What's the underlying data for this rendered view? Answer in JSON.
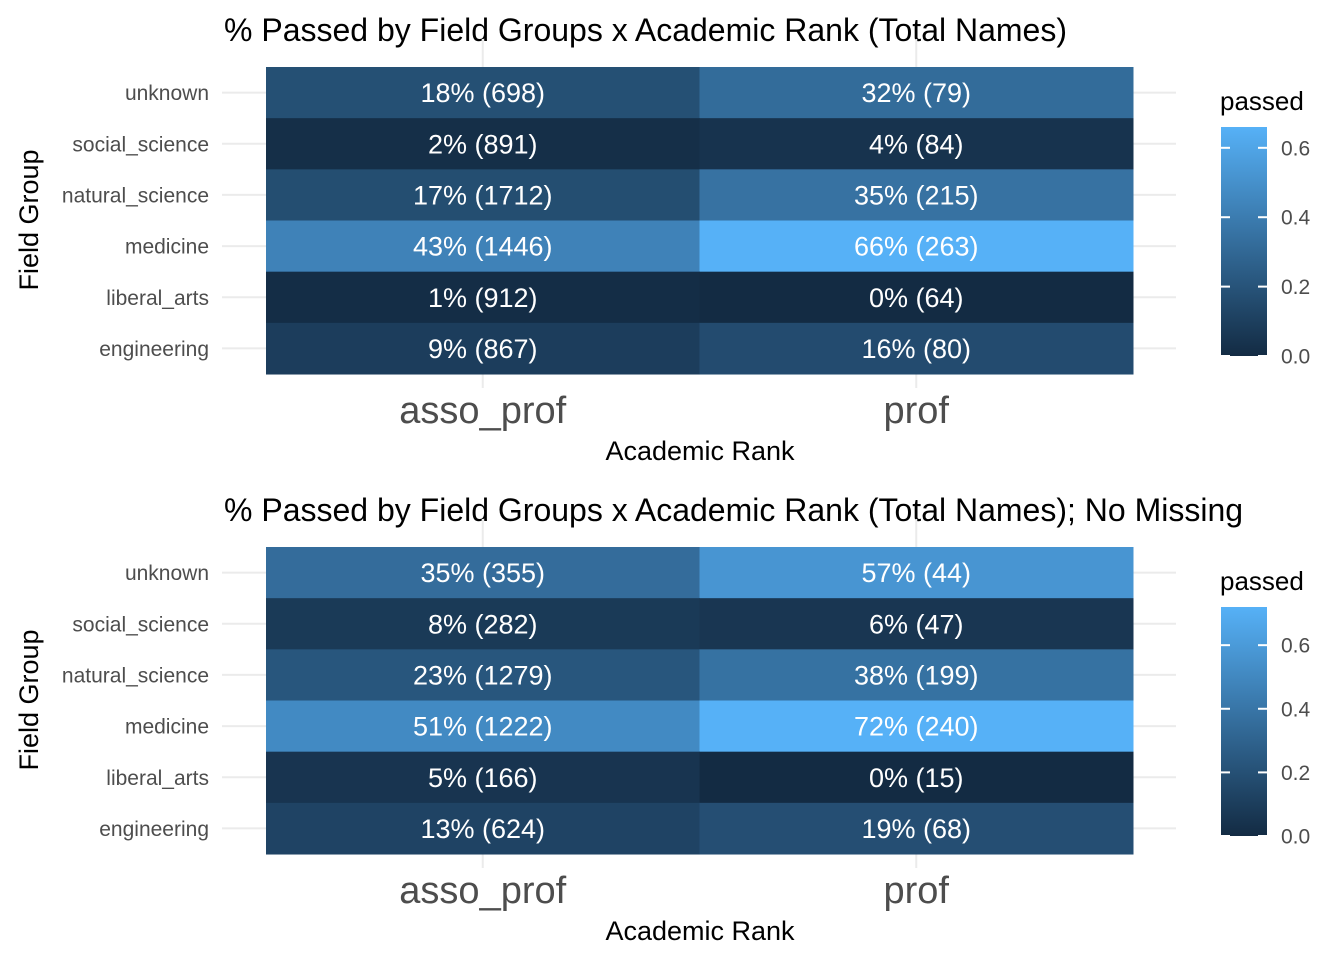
{
  "chart_data": [
    {
      "type": "heatmap",
      "title": "% Passed by Field Groups x Academic Rank (Total Names)",
      "xlabel": "Academic Rank",
      "ylabel": "Field Group",
      "x": [
        "asso_prof",
        "prof"
      ],
      "y": [
        "unknown",
        "social_science",
        "natural_science",
        "medicine",
        "liberal_arts",
        "engineering"
      ],
      "values": [
        [
          0.18,
          0.32
        ],
        [
          0.02,
          0.04
        ],
        [
          0.17,
          0.35
        ],
        [
          0.43,
          0.66
        ],
        [
          0.01,
          0.0
        ],
        [
          0.09,
          0.16
        ]
      ],
      "labels": [
        [
          "18% (698)",
          "32% (79)"
        ],
        [
          "2% (891)",
          "4% (84)"
        ],
        [
          "17% (1712)",
          "35% (215)"
        ],
        [
          "43% (1446)",
          "66% (263)"
        ],
        [
          "1% (912)",
          "0% (64)"
        ],
        [
          "9% (867)",
          "16% (80)"
        ]
      ],
      "legend": {
        "title": "passed",
        "range": [
          0,
          0.66
        ],
        "ticks": [
          0,
          0.2,
          0.4,
          0.6
        ],
        "tick_labels": [
          "0.0",
          "0.2",
          "0.4",
          "0.6"
        ],
        "low_color": "#132B43",
        "high_color": "#56B1F7",
        "position": "right"
      },
      "grid": true
    },
    {
      "type": "heatmap",
      "title": "% Passed by Field Groups x Academic Rank (Total Names); No Missing",
      "xlabel": "Academic Rank",
      "ylabel": "Field Group",
      "x": [
        "asso_prof",
        "prof"
      ],
      "y": [
        "unknown",
        "social_science",
        "natural_science",
        "medicine",
        "liberal_arts",
        "engineering"
      ],
      "values": [
        [
          0.35,
          0.57
        ],
        [
          0.08,
          0.06
        ],
        [
          0.23,
          0.38
        ],
        [
          0.51,
          0.72
        ],
        [
          0.05,
          0.0
        ],
        [
          0.13,
          0.19
        ]
      ],
      "labels": [
        [
          "35% (355)",
          "57% (44)"
        ],
        [
          "8% (282)",
          "6% (47)"
        ],
        [
          "23% (1279)",
          "38% (199)"
        ],
        [
          "51% (1222)",
          "72% (240)"
        ],
        [
          "5% (166)",
          "0% (15)"
        ],
        [
          "13% (624)",
          "19% (68)"
        ]
      ],
      "legend": {
        "title": "passed",
        "range": [
          0,
          0.72
        ],
        "ticks": [
          0,
          0.2,
          0.4,
          0.6
        ],
        "tick_labels": [
          "0.0",
          "0.2",
          "0.4",
          "0.6"
        ],
        "low_color": "#132B43",
        "high_color": "#56B1F7",
        "position": "right"
      },
      "grid": true
    }
  ]
}
